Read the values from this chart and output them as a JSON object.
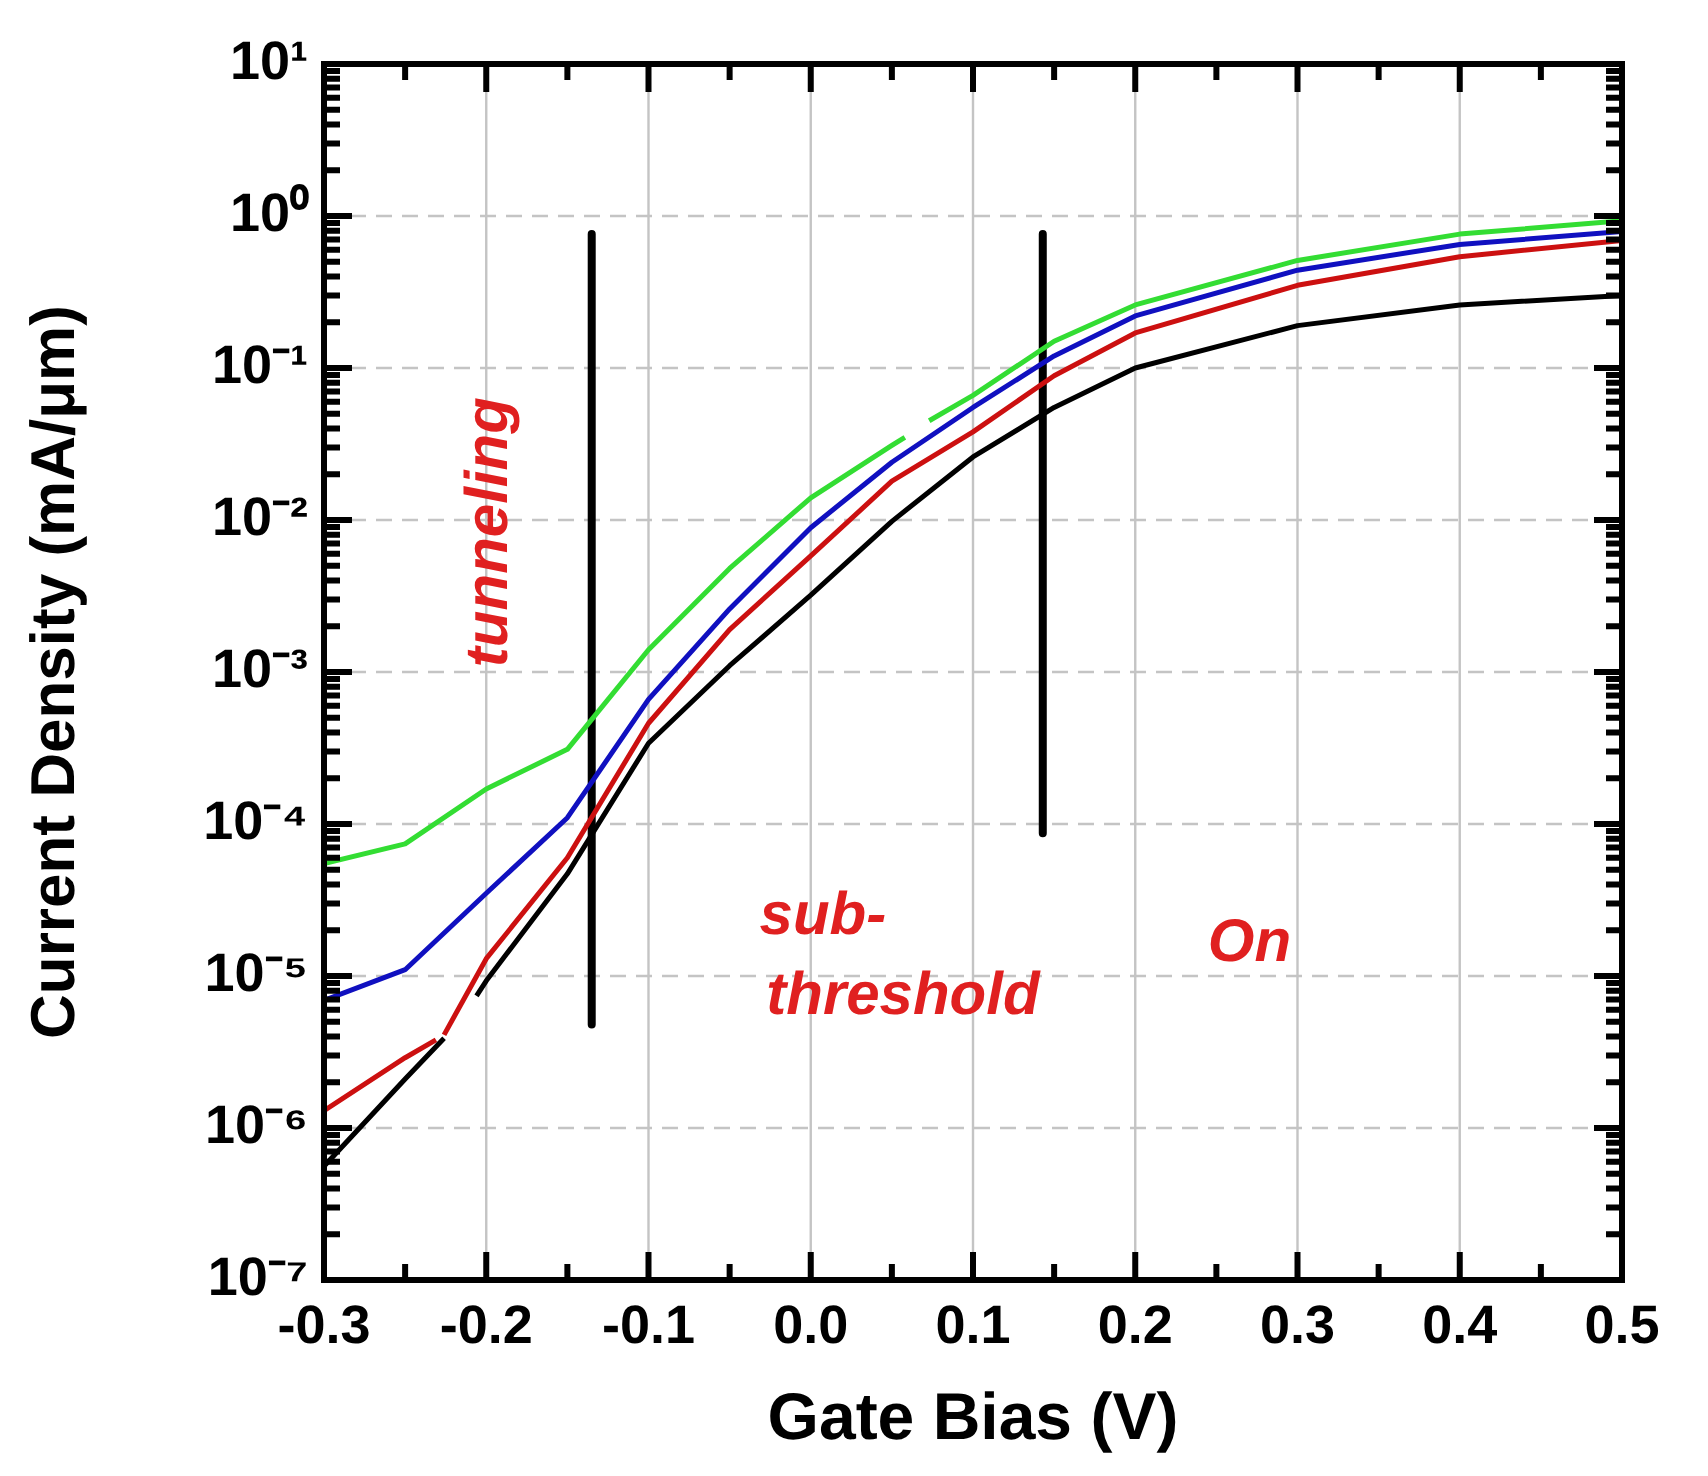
{
  "chart_data": {
    "type": "line",
    "xlabel": "Gate Bias (V)",
    "ylabel": "Current Density (mA/μm)",
    "log": true,
    "grid": true,
    "marker": "none",
    "line_style": "solid",
    "xlim": [
      -0.3,
      0.5
    ],
    "xticks": [
      -0.3,
      {
        "value": -0.25,
        "label": null
      },
      -0.2,
      {
        "value": -0.15,
        "label": null
      },
      -0.1,
      {
        "value": -0.05,
        "label": null
      },
      {
        "value": 0,
        "label": "0.0"
      },
      {
        "value": 0.05,
        "label": null
      },
      0.1,
      {
        "value": 0.15,
        "label": null
      },
      0.2,
      {
        "value": 0.25,
        "label": null
      },
      0.3,
      {
        "value": 0.35,
        "label": null
      },
      0.4,
      {
        "value": 0.45,
        "label": null
      },
      0.5
    ],
    "ylim": [
      1e-07,
      10
    ],
    "yticks": [
      {
        "value": 1e-07,
        "label": "10⁻⁷"
      },
      {
        "value": 2e-07,
        "label": null
      },
      {
        "value": 3e-07,
        "label": null
      },
      {
        "value": 4e-07,
        "label": null
      },
      {
        "value": 5e-07,
        "label": null
      },
      {
        "value": 6e-07,
        "label": null
      },
      {
        "value": 7e-07,
        "label": null
      },
      {
        "value": 8e-07,
        "label": null
      },
      {
        "value": 9e-07,
        "label": null
      },
      {
        "value": 1e-06,
        "label": "10⁻⁶"
      },
      {
        "value": 2e-06,
        "label": null
      },
      {
        "value": 3e-06,
        "label": null
      },
      {
        "value": 4e-06,
        "label": null
      },
      {
        "value": 5e-06,
        "label": null
      },
      {
        "value": 6e-06,
        "label": null
      },
      {
        "value": 7e-06,
        "label": null
      },
      {
        "value": 8e-06,
        "label": null
      },
      {
        "value": 9e-06,
        "label": null
      },
      {
        "value": 1e-05,
        "label": "10⁻⁵"
      },
      {
        "value": 2e-05,
        "label": null
      },
      {
        "value": 3e-05,
        "label": null
      },
      {
        "value": 4e-05,
        "label": null
      },
      {
        "value": 5e-05,
        "label": null
      },
      {
        "value": 6e-05,
        "label": null
      },
      {
        "value": 7e-05,
        "label": null
      },
      {
        "value": 8e-05,
        "label": null
      },
      {
        "value": 9e-05,
        "label": null
      },
      {
        "value": 0.0001,
        "label": "10⁻⁴"
      },
      {
        "value": 0.0002,
        "label": null
      },
      {
        "value": 0.0003,
        "label": null
      },
      {
        "value": 0.0004,
        "label": null
      },
      {
        "value": 0.0005,
        "label": null
      },
      {
        "value": 0.0006,
        "label": null
      },
      {
        "value": 0.0007,
        "label": null
      },
      {
        "value": 0.0008,
        "label": null
      },
      {
        "value": 0.0009,
        "label": null
      },
      {
        "value": 0.001,
        "label": "10⁻³"
      },
      {
        "value": 0.002,
        "label": null
      },
      {
        "value": 0.003,
        "label": null
      },
      {
        "value": 0.004,
        "label": null
      },
      {
        "value": 0.005,
        "label": null
      },
      {
        "value": 0.006,
        "label": null
      },
      {
        "value": 0.007,
        "label": null
      },
      {
        "value": 0.008,
        "label": null
      },
      {
        "value": 0.009,
        "label": null
      },
      {
        "value": 0.01,
        "label": "10⁻²"
      },
      {
        "value": 0.02,
        "label": null
      },
      {
        "value": 0.03,
        "label": null
      },
      {
        "value": 0.04,
        "label": null
      },
      {
        "value": 0.05,
        "label": null
      },
      {
        "value": 0.06,
        "label": null
      },
      {
        "value": 0.07,
        "label": null
      },
      {
        "value": 0.08,
        "label": null
      },
      {
        "value": 0.09,
        "label": null
      },
      {
        "value": 0.1,
        "label": "10⁻¹"
      },
      {
        "value": 0.2,
        "label": null
      },
      {
        "value": 0.3,
        "label": null
      },
      {
        "value": 0.4,
        "label": null
      },
      {
        "value": 0.5,
        "label": null
      },
      {
        "value": 0.6,
        "label": null
      },
      {
        "value": 0.7,
        "label": null
      },
      {
        "value": 0.8,
        "label": null
      },
      {
        "value": 0.9,
        "label": null
      },
      {
        "value": 1,
        "label": "10⁰"
      },
      {
        "value": 2,
        "label": null
      },
      {
        "value": 3,
        "label": null
      },
      {
        "value": 4,
        "label": null
      },
      {
        "value": 5,
        "label": null
      },
      {
        "value": 6,
        "label": null
      },
      {
        "value": 7,
        "label": null
      },
      {
        "value": 8,
        "label": null
      },
      {
        "value": 9,
        "label": null
      },
      {
        "value": 10,
        "label": "10¹"
      }
    ],
    "series": [
      {
        "color": "#000000",
        "x": [
          -0.3,
          -0.25,
          -0.226,
          -0.216,
          -0.206,
          -0.2,
          -0.15,
          -0.1,
          -0.05,
          0,
          0.05,
          0.1,
          0.15,
          0.2,
          0.3,
          0.4,
          0.5
        ],
        "values": [
          5.6e-07,
          2.1e-06,
          3.9e-06,
          null,
          7.4e-06,
          9.3e-06,
          4.7e-05,
          0.00034,
          0.0011,
          0.0032,
          0.0098,
          0.026,
          0.055,
          0.1,
          0.19,
          0.26,
          0.3
        ]
      },
      {
        "color": "#cc1010",
        "x": [
          -0.3,
          -0.25,
          -0.231,
          -0.228,
          -0.226,
          -0.2,
          -0.15,
          -0.1,
          -0.05,
          0,
          0.05,
          0.1,
          0.15,
          0.2,
          0.3,
          0.4,
          0.5
        ],
        "values": [
          1.3e-06,
          2.9e-06,
          3.8e-06,
          null,
          4.1e-06,
          1.3e-05,
          6e-05,
          0.00046,
          0.0019,
          0.0058,
          0.018,
          0.038,
          0.089,
          0.17,
          0.35,
          0.54,
          0.69
        ]
      },
      {
        "color": "#1010c0",
        "x": [
          -0.3,
          -0.25,
          -0.2,
          -0.15,
          -0.1,
          -0.05,
          0,
          0.05,
          0.1,
          0.15,
          0.2,
          0.3,
          0.4,
          0.5
        ],
        "values": [
          6.9e-06,
          1.1e-05,
          3.5e-05,
          0.00011,
          0.00066,
          0.0026,
          0.0089,
          0.024,
          0.055,
          0.12,
          0.22,
          0.44,
          0.65,
          0.79
        ]
      },
      {
        "color": "#33dd33",
        "x": [
          -0.3,
          -0.25,
          -0.2,
          -0.15,
          -0.1,
          -0.05,
          0,
          0.05,
          0.058,
          0.065,
          0.073,
          0.1,
          0.15,
          0.2,
          0.3,
          0.4,
          0.5
        ],
        "values": [
          5.5e-05,
          7.4e-05,
          0.00017,
          0.00031,
          0.0014,
          0.0048,
          0.014,
          0.031,
          0.035,
          null,
          0.045,
          0.066,
          0.15,
          0.26,
          0.51,
          0.76,
          0.93
        ]
      },
      {
        "color": "#000000",
        "x": [
          -0.135,
          -0.135
        ],
        "values": [
          0.76,
          4.8e-06
        ]
      },
      {
        "color": "#000000",
        "x": [
          0.143,
          0.143
        ],
        "values": [
          0.76,
          8.7e-05
        ]
      }
    ],
    "annotations": [
      "tunneling",
      "sub-\nthreshold",
      "On"
    ]
  }
}
